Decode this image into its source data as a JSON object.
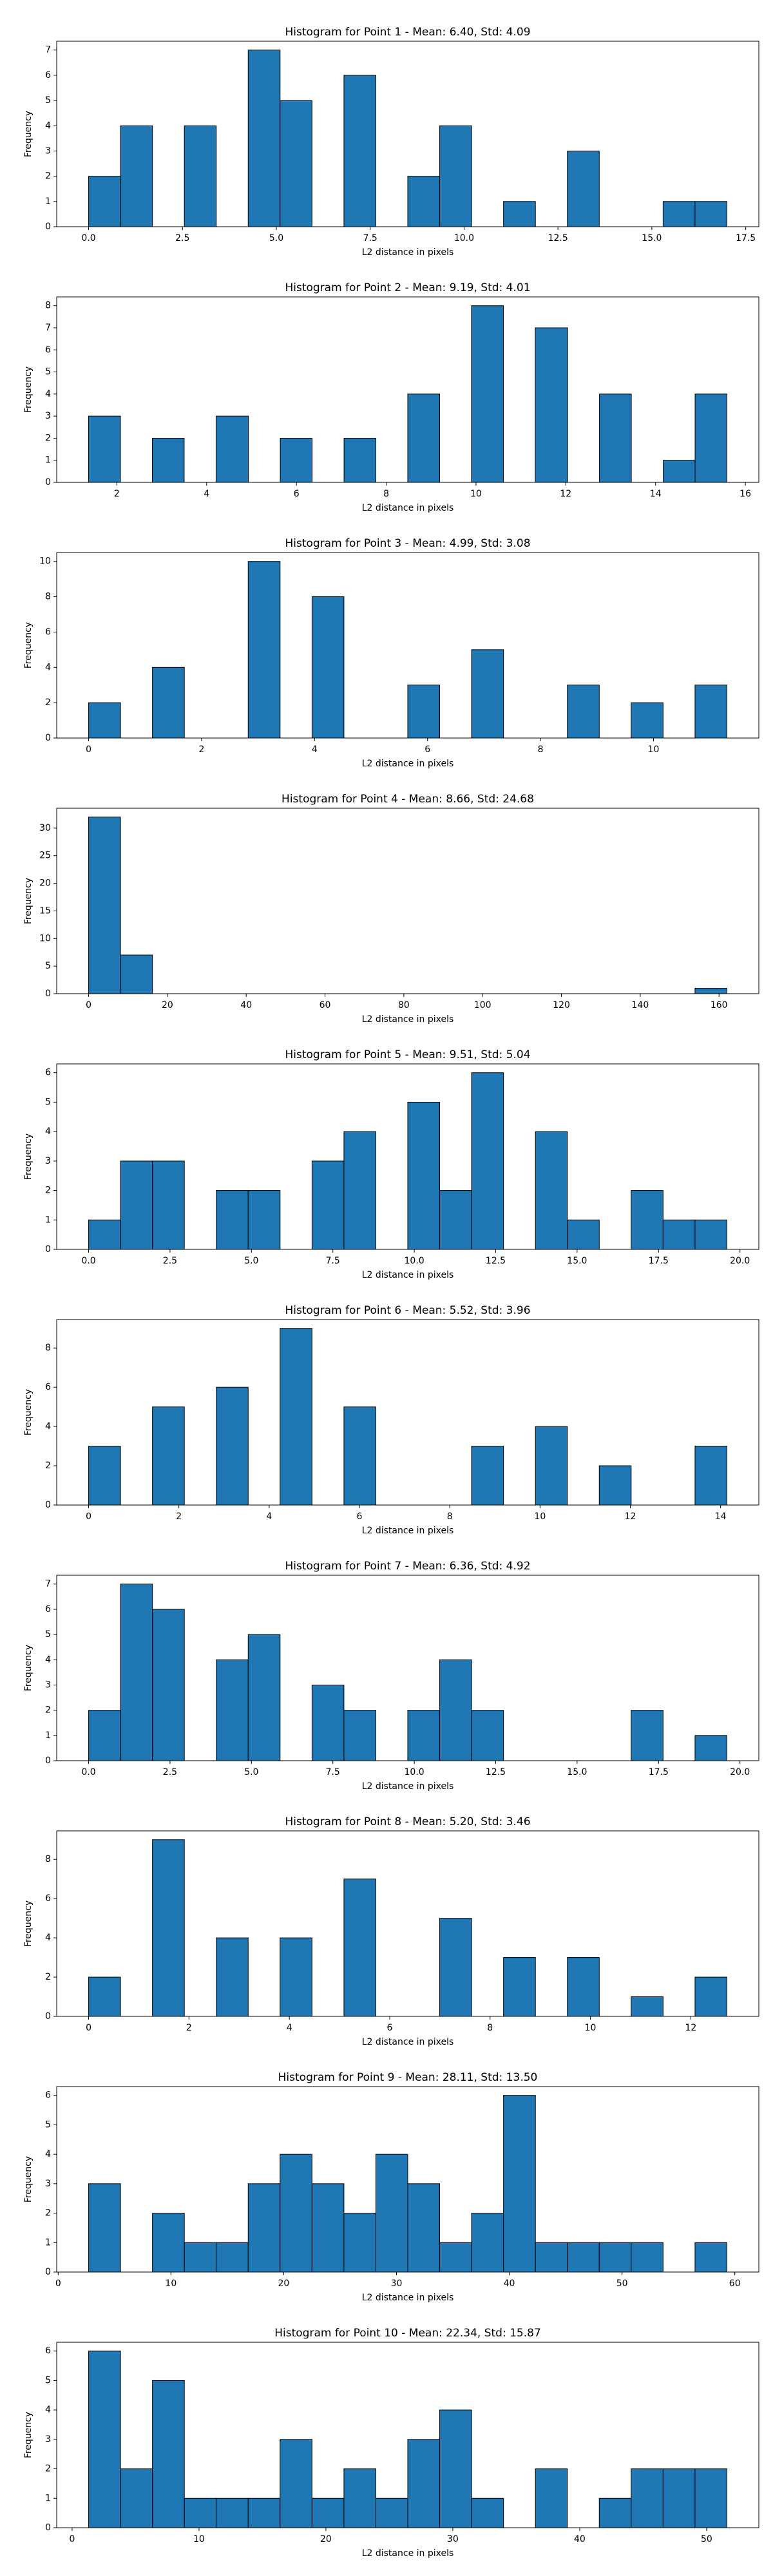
{
  "chart_data": [
    {
      "type": "histogram",
      "title": "Histogram for Point 1 - Mean: 6.40, Std: 4.09",
      "x_label": "L2 distance in pixels",
      "y_label": "Frequency",
      "color": "#1f77b4",
      "edgecolor": "#000000",
      "bins": [
        0,
        0.85,
        1.7,
        2.55,
        3.4,
        4.25,
        5.1,
        5.95,
        6.8,
        7.65,
        8.5,
        9.35,
        10.2,
        11.05,
        11.9,
        12.75,
        13.6,
        14.45,
        15.3,
        16.15,
        17
      ],
      "counts": [
        2,
        4,
        0,
        4,
        0,
        7,
        5,
        0,
        6,
        0,
        2,
        4,
        0,
        1,
        0,
        3,
        0,
        0,
        1,
        1
      ],
      "xlim": [
        -0.85,
        17.85
      ],
      "xticks": [
        {
          "value": 0,
          "label": "0.0"
        },
        2.5,
        {
          "value": 5,
          "label": "5.0"
        },
        7.5,
        {
          "value": 10,
          "label": "10.0"
        },
        12.5,
        {
          "value": 15,
          "label": "15.0"
        },
        17.5
      ],
      "ylim": [
        0,
        7.35
      ],
      "yticks": [
        0,
        1,
        2,
        3,
        4,
        5,
        6,
        7
      ]
    },
    {
      "type": "histogram",
      "title": "Histogram for Point 2 - Mean: 9.19, Std: 4.01",
      "x_label": "L2 distance in pixels",
      "y_label": "Frequency",
      "color": "#1f77b4",
      "edgecolor": "#000000",
      "bins": [
        1.37,
        2.08,
        2.79,
        3.5,
        4.21,
        4.93,
        5.64,
        6.35,
        7.06,
        7.77,
        8.48,
        9.19,
        9.9,
        10.61,
        11.32,
        12.04,
        12.75,
        13.46,
        14.17,
        14.88,
        15.59
      ],
      "counts": [
        3,
        0,
        2,
        0,
        3,
        0,
        2,
        0,
        2,
        0,
        4,
        0,
        8,
        0,
        7,
        0,
        4,
        0,
        1,
        4
      ],
      "xlim": [
        0.66,
        16.3
      ],
      "xticks": [
        2,
        4,
        6,
        8,
        10,
        12,
        14,
        16
      ],
      "ylim": [
        0,
        8.4
      ],
      "yticks": [
        0,
        1,
        2,
        3,
        4,
        5,
        6,
        7,
        8
      ]
    },
    {
      "type": "histogram",
      "title": "Histogram for Point 3 - Mean: 4.99, Std: 3.08",
      "x_label": "L2 distance in pixels",
      "y_label": "Frequency",
      "color": "#1f77b4",
      "edgecolor": "#000000",
      "bins": [
        0,
        0.565,
        1.13,
        1.695,
        2.26,
        2.825,
        3.39,
        3.955,
        4.52,
        5.085,
        5.65,
        6.215,
        6.78,
        7.345,
        7.91,
        8.475,
        9.04,
        9.605,
        10.17,
        10.735,
        11.3
      ],
      "counts": [
        2,
        0,
        4,
        0,
        0,
        10,
        0,
        8,
        0,
        0,
        3,
        0,
        5,
        0,
        0,
        3,
        0,
        2,
        0,
        3
      ],
      "xlim": [
        -0.565,
        11.865
      ],
      "xticks": [
        0,
        2,
        4,
        6,
        8,
        10
      ],
      "ylim": [
        0,
        10.5
      ],
      "yticks": [
        0,
        2,
        4,
        6,
        8,
        10
      ]
    },
    {
      "type": "histogram",
      "title": "Histogram for Point 4 - Mean: 8.66, Std: 24.68",
      "x_label": "L2 distance in pixels",
      "y_label": "Frequency",
      "color": "#1f77b4",
      "edgecolor": "#000000",
      "bins": [
        0,
        8.1,
        16.2,
        24.3,
        32.4,
        40.5,
        48.6,
        56.7,
        64.8,
        72.9,
        81,
        89.1,
        97.2,
        105.3,
        113.4,
        121.5,
        129.6,
        137.7,
        145.8,
        153.9,
        162
      ],
      "counts": [
        32,
        7,
        0,
        0,
        0,
        0,
        0,
        0,
        0,
        0,
        0,
        0,
        0,
        0,
        0,
        0,
        0,
        0,
        0,
        1
      ],
      "xlim": [
        -8.1,
        170.1
      ],
      "xticks": [
        0,
        20,
        40,
        60,
        80,
        100,
        120,
        140,
        160
      ],
      "ylim": [
        0,
        33.6
      ],
      "yticks": [
        0,
        5,
        10,
        15,
        20,
        25,
        30
      ]
    },
    {
      "type": "histogram",
      "title": "Histogram for Point 5 - Mean: 9.51, Std: 5.04",
      "x_label": "L2 distance in pixels",
      "y_label": "Frequency",
      "color": "#1f77b4",
      "edgecolor": "#000000",
      "bins": [
        0,
        0.98,
        1.96,
        2.94,
        3.92,
        4.9,
        5.88,
        6.86,
        7.84,
        8.82,
        9.8,
        10.78,
        11.76,
        12.74,
        13.72,
        14.7,
        15.68,
        16.66,
        17.64,
        18.62,
        19.6
      ],
      "counts": [
        1,
        3,
        3,
        0,
        2,
        2,
        0,
        3,
        4,
        0,
        5,
        2,
        6,
        0,
        4,
        1,
        0,
        2,
        1,
        1
      ],
      "xlim": [
        -0.98,
        20.58
      ],
      "xticks": [
        {
          "value": 0,
          "label": "0.0"
        },
        2.5,
        {
          "value": 5,
          "label": "5.0"
        },
        7.5,
        {
          "value": 10,
          "label": "10.0"
        },
        12.5,
        {
          "value": 15,
          "label": "15.0"
        },
        17.5,
        {
          "value": 20,
          "label": "20.0"
        }
      ],
      "ylim": [
        0,
        6.3
      ],
      "yticks": [
        0,
        1,
        2,
        3,
        4,
        5,
        6
      ]
    },
    {
      "type": "histogram",
      "title": "Histogram for Point 6 - Mean: 5.52, Std: 3.96",
      "x_label": "L2 distance in pixels",
      "y_label": "Frequency",
      "color": "#1f77b4",
      "edgecolor": "#000000",
      "bins": [
        0,
        0.707,
        1.414,
        2.121,
        2.828,
        3.535,
        4.242,
        4.949,
        5.656,
        6.363,
        7.07,
        7.777,
        8.484,
        9.191,
        9.898,
        10.605,
        11.312,
        12.019,
        12.726,
        13.433,
        14.14
      ],
      "counts": [
        3,
        0,
        5,
        0,
        6,
        0,
        9,
        0,
        5,
        0,
        0,
        0,
        3,
        0,
        4,
        0,
        2,
        0,
        0,
        3
      ],
      "xlim": [
        -0.707,
        14.847
      ],
      "xticks": [
        0,
        2,
        4,
        6,
        8,
        10,
        12,
        14
      ],
      "ylim": [
        0,
        9.45
      ],
      "yticks": [
        0,
        2,
        4,
        6,
        8
      ]
    },
    {
      "type": "histogram",
      "title": "Histogram for Point 7 - Mean: 6.36, Std: 4.92",
      "x_label": "L2 distance in pixels",
      "y_label": "Frequency",
      "color": "#1f77b4",
      "edgecolor": "#000000",
      "bins": [
        0,
        0.98,
        1.96,
        2.94,
        3.92,
        4.9,
        5.88,
        6.86,
        7.84,
        8.82,
        9.8,
        10.78,
        11.76,
        12.74,
        13.72,
        14.7,
        15.68,
        16.66,
        17.64,
        18.62,
        19.6
      ],
      "counts": [
        2,
        7,
        6,
        0,
        4,
        5,
        0,
        3,
        2,
        0,
        2,
        4,
        2,
        0,
        0,
        0,
        0,
        2,
        0,
        1
      ],
      "xlim": [
        -0.98,
        20.58
      ],
      "xticks": [
        {
          "value": 0,
          "label": "0.0"
        },
        2.5,
        {
          "value": 5,
          "label": "5.0"
        },
        7.5,
        {
          "value": 10,
          "label": "10.0"
        },
        12.5,
        {
          "value": 15,
          "label": "15.0"
        },
        17.5,
        {
          "value": 20,
          "label": "20.0"
        }
      ],
      "ylim": [
        0,
        7.35
      ],
      "yticks": [
        0,
        1,
        2,
        3,
        4,
        5,
        6,
        7
      ]
    },
    {
      "type": "histogram",
      "title": "Histogram for Point 8 - Mean: 5.20, Std: 3.46",
      "x_label": "L2 distance in pixels",
      "y_label": "Frequency",
      "color": "#1f77b4",
      "edgecolor": "#000000",
      "bins": [
        0,
        0.636,
        1.272,
        1.908,
        2.544,
        3.18,
        3.816,
        4.452,
        5.088,
        5.724,
        6.36,
        6.996,
        7.632,
        8.268,
        8.904,
        9.54,
        10.176,
        10.812,
        11.448,
        12.084,
        12.72
      ],
      "counts": [
        2,
        0,
        9,
        0,
        4,
        0,
        4,
        0,
        7,
        0,
        0,
        5,
        0,
        3,
        0,
        3,
        0,
        1,
        0,
        2
      ],
      "xlim": [
        -0.636,
        13.356
      ],
      "xticks": [
        0,
        2,
        4,
        6,
        8,
        10,
        12
      ],
      "ylim": [
        0,
        9.45
      ],
      "yticks": [
        0,
        2,
        4,
        6,
        8
      ]
    },
    {
      "type": "histogram",
      "title": "Histogram for Point 9 - Mean: 28.11, Std: 13.50",
      "x_label": "L2 distance in pixels",
      "y_label": "Frequency",
      "color": "#1f77b4",
      "edgecolor": "#000000",
      "bins": [
        2.7,
        5.53,
        8.36,
        11.19,
        14.02,
        16.85,
        19.68,
        22.51,
        25.34,
        28.17,
        31,
        33.83,
        36.66,
        39.49,
        42.32,
        45.15,
        47.98,
        50.81,
        53.64,
        56.47,
        59.3
      ],
      "counts": [
        3,
        0,
        2,
        1,
        1,
        3,
        4,
        3,
        2,
        4,
        3,
        1,
        2,
        6,
        1,
        1,
        1,
        1,
        0,
        1
      ],
      "xlim": [
        -0.13,
        62.13
      ],
      "xticks": [
        0,
        10,
        20,
        30,
        40,
        50,
        60
      ],
      "ylim": [
        0,
        6.3
      ],
      "yticks": [
        0,
        1,
        2,
        3,
        4,
        5,
        6
      ]
    },
    {
      "type": "histogram",
      "title": "Histogram for Point 10 - Mean: 22.34, Std: 15.87",
      "x_label": "L2 distance in pixels",
      "y_label": "Frequency",
      "color": "#1f77b4",
      "edgecolor": "#000000",
      "bins": [
        1.3,
        3.815,
        6.33,
        8.845,
        11.36,
        13.875,
        16.39,
        18.905,
        21.42,
        23.935,
        26.45,
        28.965,
        31.48,
        33.995,
        36.51,
        39.025,
        41.54,
        44.055,
        46.57,
        49.085,
        51.6
      ],
      "counts": [
        6,
        2,
        5,
        1,
        1,
        1,
        3,
        1,
        2,
        1,
        3,
        4,
        1,
        0,
        2,
        0,
        1,
        2,
        2,
        2
      ],
      "xlim": [
        -1.215,
        54.115
      ],
      "xticks": [
        0,
        10,
        20,
        30,
        40,
        50
      ],
      "ylim": [
        0,
        6.3
      ],
      "yticks": [
        0,
        1,
        2,
        3,
        4,
        5,
        6
      ]
    }
  ]
}
